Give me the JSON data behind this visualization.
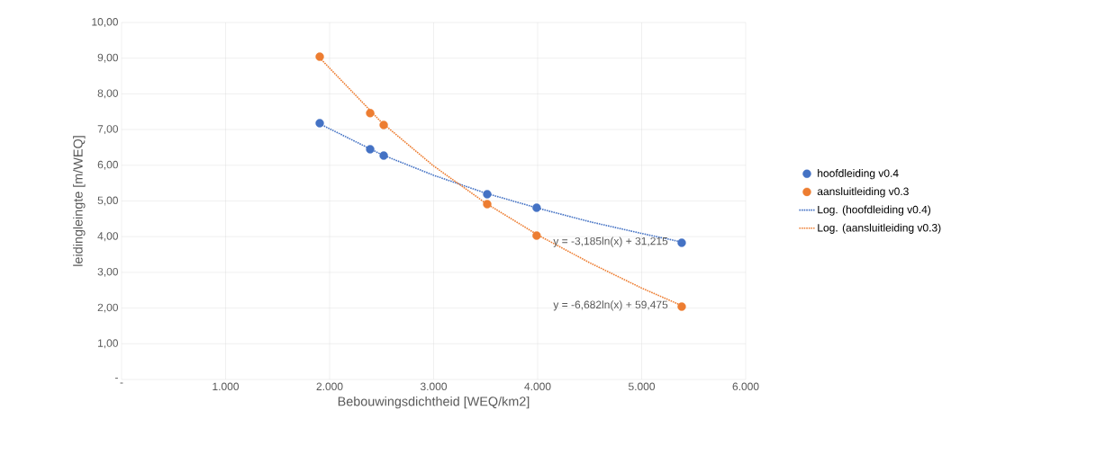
{
  "chart_data": {
    "type": "scatter",
    "xlabel": "Bebouwingsdichtheid [WEQ/km2]",
    "ylabel": "leidingleingte [m/WEQ]",
    "xlim": [
      0,
      6000
    ],
    "ylim": [
      0,
      10
    ],
    "xticks": [
      {
        "value": 0,
        "label": "-"
      },
      {
        "value": 1000,
        "label": "1.000"
      },
      {
        "value": 2000,
        "label": "2.000"
      },
      {
        "value": 3000,
        "label": "3.000"
      },
      {
        "value": 4000,
        "label": "4.000"
      },
      {
        "value": 5000,
        "label": "5.000"
      },
      {
        "value": 6000,
        "label": "6.000"
      }
    ],
    "yticks": [
      {
        "value": 0,
        "label": "-"
      },
      {
        "value": 1,
        "label": "1,00"
      },
      {
        "value": 2,
        "label": "2,00"
      },
      {
        "value": 3,
        "label": "3,00"
      },
      {
        "value": 4,
        "label": "4,00"
      },
      {
        "value": 5,
        "label": "5,00"
      },
      {
        "value": 6,
        "label": "6,00"
      },
      {
        "value": 7,
        "label": "7,00"
      },
      {
        "value": 8,
        "label": "8,00"
      },
      {
        "value": 9,
        "label": "9,00"
      },
      {
        "value": 10,
        "label": "10,00"
      }
    ],
    "grid": true,
    "legend": "right",
    "marker": "circle",
    "series": [
      {
        "name": "hoofdleiding v0.4",
        "color": "#4472c4",
        "x": [
          1905,
          2390,
          2520,
          3515,
          3990,
          5385
        ],
        "values": [
          7.18,
          6.45,
          6.27,
          5.19,
          4.81,
          3.83
        ]
      },
      {
        "name": "aansluitleiding v0.3",
        "color": "#ed7d31",
        "x": [
          1905,
          2390,
          2520,
          3515,
          3990,
          5385
        ],
        "values": [
          9.04,
          7.46,
          7.13,
          4.91,
          4.03,
          2.04
        ]
      },
      {
        "name": "Log. (hoofdleiding v0.4)",
        "type": "line",
        "marker": "none",
        "line_style": "dotted",
        "color": "#4472c4",
        "x": [
          1905,
          2500,
          3000,
          3500,
          4000,
          4500,
          5000,
          5385
        ],
        "values": [
          7.16,
          6.3,
          5.72,
          5.22,
          4.8,
          4.42,
          4.09,
          3.85
        ]
      },
      {
        "name": "Log. (aansluitleiding v0.3)",
        "type": "line",
        "marker": "none",
        "line_style": "dotted",
        "color": "#ed7d31",
        "x": [
          1905,
          2500,
          3000,
          3500,
          4000,
          4500,
          5000,
          5385
        ],
        "values": [
          9.01,
          7.2,
          5.98,
          4.94,
          4.05,
          3.27,
          2.56,
          2.07
        ]
      }
    ],
    "annotations": [
      "y = -3,185ln(x) + 31,215",
      "y = -6,682ln(x) + 59,475"
    ]
  }
}
